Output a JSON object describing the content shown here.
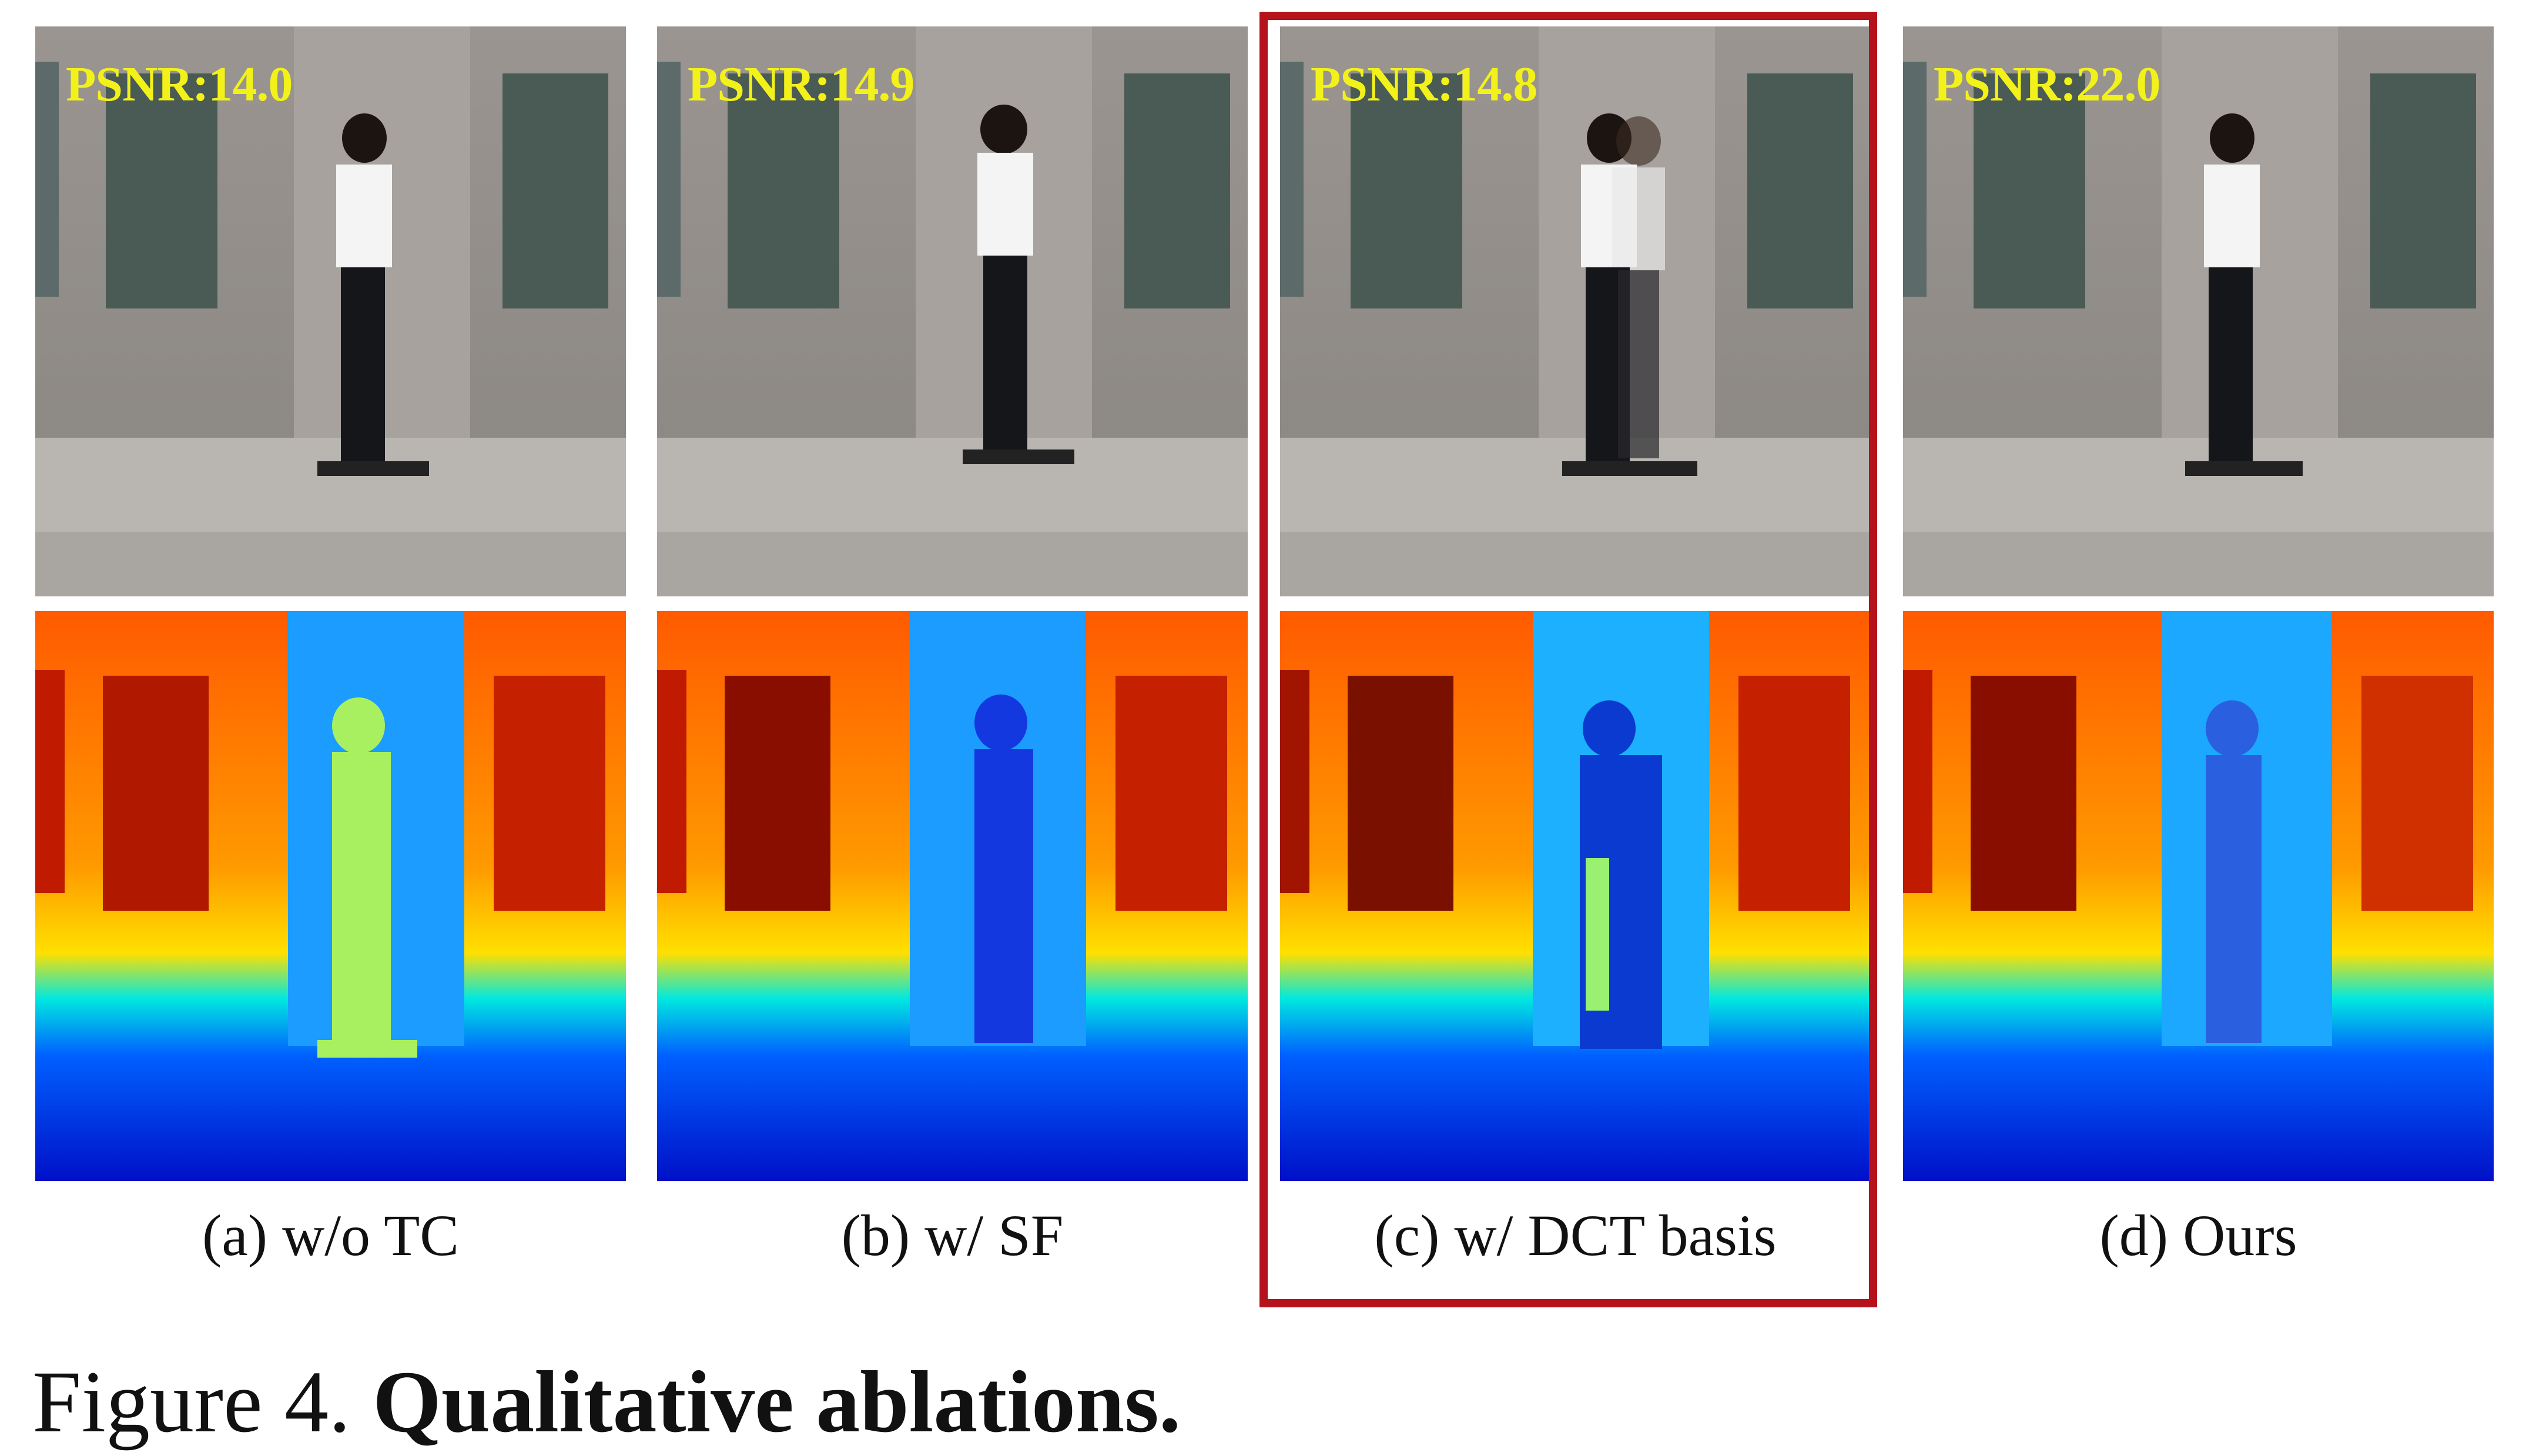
{
  "panels": [
    {
      "psnr": "PSNR:14.0",
      "caption": "(a) w/o TC"
    },
    {
      "psnr": "PSNR:14.9",
      "caption": "(b) w/ SF"
    },
    {
      "psnr": "PSNR:14.8",
      "caption": "(c) w/ DCT basis"
    },
    {
      "psnr": "PSNR:22.0",
      "caption": "(d) Ours"
    }
  ],
  "highlighted_panel": "(c) w/ DCT basis",
  "figure_caption": {
    "label": "Figure 4.",
    "title": "Qualitative ablations."
  },
  "colors": {
    "psnr_text": "#f2f21a",
    "highlight_border": "#b5121b"
  }
}
